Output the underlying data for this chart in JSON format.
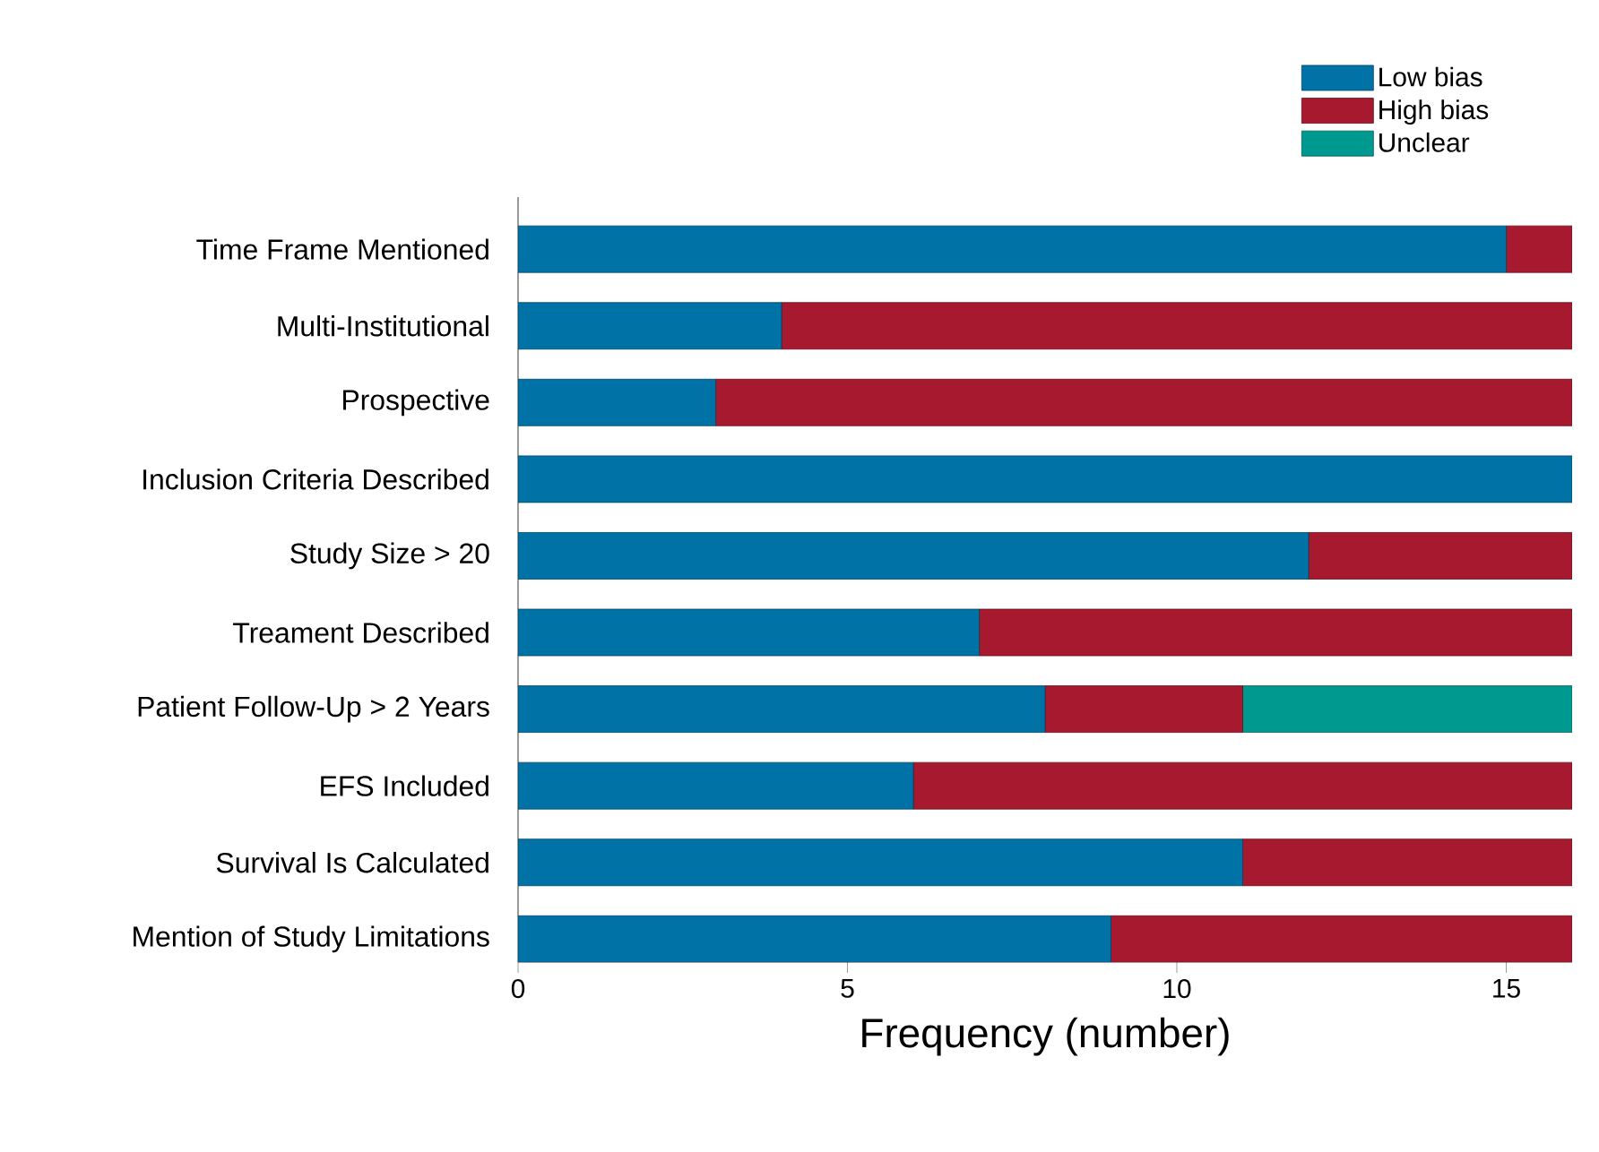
{
  "chart_data": {
    "type": "bar",
    "orientation": "horizontal",
    "stacked": true,
    "categories": [
      "Time Frame Mentioned",
      "Multi-Institutional",
      "Prospective",
      "Inclusion Criteria Described",
      "Study Size > 20",
      "Treament Described",
      "Patient Follow-Up > 2 Years",
      "EFS Included",
      "Survival Is Calculated",
      "Mention of Study Limitations"
    ],
    "series": [
      {
        "name": "Low bias",
        "color": "#0072a6",
        "values": [
          15,
          4,
          3,
          16,
          12,
          7,
          8,
          6,
          11,
          9
        ]
      },
      {
        "name": "High bias",
        "color": "#a6192e",
        "values": [
          1,
          12,
          13,
          0,
          4,
          9,
          3,
          10,
          5,
          7
        ]
      },
      {
        "name": "Unclear",
        "color": "#00998f",
        "values": [
          0,
          0,
          0,
          0,
          0,
          0,
          5,
          0,
          0,
          0
        ]
      }
    ],
    "xlim": [
      0,
      16
    ],
    "xticks": [
      0,
      5,
      10,
      15
    ],
    "xlabel": "Frequency (number)",
    "legend": "top right",
    "grid": false
  }
}
